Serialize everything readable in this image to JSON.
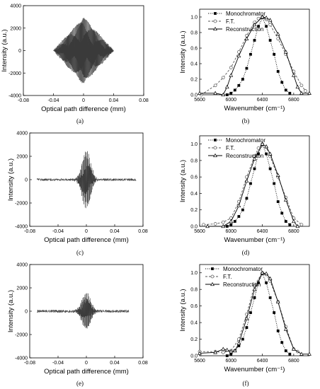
{
  "panel_labels": [
    "(a)",
    "(b)",
    "(c)",
    "(d)",
    "(e)",
    "(f)"
  ],
  "chart_data": [
    {
      "type": "line",
      "panel": "(a)",
      "xlabel": "Optical path difference (mm)",
      "ylabel": "Intensity (a.u.)",
      "xlim": [
        -0.08,
        0.08
      ],
      "ylim": [
        -4000,
        4000
      ],
      "xticks": [
        -0.08,
        -0.04,
        0,
        0.04,
        0.08
      ],
      "xtick_labels": [
        "-0.08",
        "-0.04",
        "0",
        "0.04",
        "0.08"
      ],
      "yticks": [
        -4000,
        -2000,
        0,
        2000,
        4000
      ],
      "ytick_labels": [
        "-4000",
        "-2000",
        "0",
        "2000",
        "4000"
      ],
      "color": "#3a3a3a",
      "signal": {
        "x_start": -0.04,
        "x_end": 0.04,
        "peak_amplitude": 3000,
        "envelope": "triangular",
        "baseline_noise": 100
      }
    },
    {
      "type": "line",
      "panel": "(b)",
      "xlabel": "Wavenumber (cm⁻¹)",
      "ylabel": "Intensity (a.u.)",
      "xlim": [
        5600,
        7000
      ],
      "ylim": [
        0,
        1.1
      ],
      "xticks": [
        5600,
        6000,
        6400,
        6800
      ],
      "xtick_labels": [
        "5600",
        "6000",
        "6400",
        "6800"
      ],
      "yticks": [
        0,
        0.2,
        0.4,
        0.6,
        0.8,
        1.0
      ],
      "ytick_labels": [
        "0.0",
        "0.2",
        "0.4",
        "0.6",
        "0.8",
        "1.0"
      ],
      "legend_position": "top-right",
      "series": [
        {
          "name": "Monochromator",
          "style": "dotted",
          "marker": "square",
          "x": [
            5950,
            6000,
            6050,
            6100,
            6150,
            6200,
            6250,
            6300,
            6350,
            6400,
            6450,
            6500,
            6550,
            6600,
            6650,
            6700,
            6750
          ],
          "y": [
            0.0,
            0.02,
            0.06,
            0.12,
            0.2,
            0.34,
            0.52,
            0.7,
            0.88,
            0.99,
            0.88,
            0.7,
            0.52,
            0.3,
            0.16,
            0.06,
            0.02
          ]
        },
        {
          "name": "F.T.",
          "style": "dashed",
          "marker": "circle",
          "x": [
            5620,
            5800,
            5900,
            6000,
            6100,
            6200,
            6300,
            6350,
            6400,
            6450,
            6500,
            6600,
            6700,
            6800,
            6900,
            6950
          ],
          "y": [
            0.0,
            0.12,
            0.22,
            0.35,
            0.55,
            0.76,
            0.93,
            0.98,
            1.0,
            0.97,
            0.9,
            0.72,
            0.52,
            0.3,
            0.12,
            0.05
          ]
        },
        {
          "name": "Reconstruction",
          "style": "solid",
          "marker": "triangle",
          "x": [
            5600,
            5800,
            5900,
            5950,
            6000,
            6100,
            6200,
            6300,
            6400,
            6450,
            6500,
            6600,
            6700,
            6800,
            6850,
            6900,
            7000
          ],
          "y": [
            0.02,
            0.02,
            0.0,
            0.1,
            0.25,
            0.5,
            0.72,
            0.9,
            1.0,
            0.99,
            0.96,
            0.78,
            0.55,
            0.25,
            0.1,
            0.02,
            0.02
          ]
        }
      ]
    },
    {
      "type": "line",
      "panel": "(c)",
      "xlabel": "Optical path difference (mm)",
      "ylabel": "Intensity (a.u.)",
      "xlim": [
        -0.08,
        0.08
      ],
      "ylim": [
        -4000,
        4000
      ],
      "xticks": [
        -0.08,
        -0.04,
        0,
        0.04,
        0.08
      ],
      "xtick_labels": [
        "-0.08",
        "-0.04",
        "0",
        "0.04",
        "0.08"
      ],
      "yticks": [
        -4000,
        -2000,
        0,
        2000,
        4000
      ],
      "ytick_labels": [
        "-4000",
        "-2000",
        "0",
        "2000",
        "4000"
      ],
      "color": "#3a3a3a",
      "signal": {
        "x_start": -0.07,
        "x_end": 0.07,
        "peak_amplitude": 2500,
        "envelope": "narrow",
        "baseline_noise": 180
      }
    },
    {
      "type": "line",
      "panel": "(d)",
      "xlabel": "Wavenumber (cm⁻¹)",
      "ylabel": "Intensity (a.u.)",
      "xlim": [
        5600,
        7000
      ],
      "ylim": [
        0,
        1.1
      ],
      "xticks": [
        5600,
        6000,
        6400,
        6800
      ],
      "xtick_labels": [
        "5600",
        "6000",
        "6400",
        "6800"
      ],
      "yticks": [
        0,
        0.2,
        0.4,
        0.6,
        0.8,
        1.0
      ],
      "ytick_labels": [
        "0.0",
        "0.2",
        "0.4",
        "0.6",
        "0.8",
        "1.0"
      ],
      "legend_position": "top-right",
      "series": [
        {
          "name": "Monochromator",
          "style": "dotted",
          "marker": "square",
          "x": [
            5950,
            6000,
            6050,
            6100,
            6150,
            6200,
            6250,
            6300,
            6350,
            6400,
            6450,
            6500,
            6550,
            6600,
            6650,
            6700,
            6750
          ],
          "y": [
            0.0,
            0.02,
            0.06,
            0.12,
            0.2,
            0.34,
            0.52,
            0.7,
            0.88,
            0.99,
            0.88,
            0.7,
            0.52,
            0.3,
            0.16,
            0.06,
            0.02
          ]
        },
        {
          "name": "F.T.",
          "style": "dashed",
          "marker": "circle",
          "x": [
            5650,
            5800,
            5900,
            6000,
            6100,
            6200,
            6300,
            6350,
            6400,
            6450,
            6500,
            6600,
            6700,
            6800,
            6900
          ],
          "y": [
            0.02,
            0.03,
            0.05,
            0.1,
            0.3,
            0.6,
            0.85,
            0.95,
            1.0,
            0.96,
            0.85,
            0.6,
            0.35,
            0.1,
            0.02
          ]
        },
        {
          "name": "Reconstruction",
          "style": "solid",
          "marker": "triangle",
          "x": [
            5700,
            5900,
            6000,
            6100,
            6200,
            6300,
            6400,
            6450,
            6500,
            6600,
            6700,
            6800,
            6850
          ],
          "y": [
            0.0,
            0.0,
            0.06,
            0.25,
            0.55,
            0.82,
            1.0,
            0.97,
            0.88,
            0.62,
            0.32,
            0.06,
            0.0
          ]
        }
      ]
    },
    {
      "type": "line",
      "panel": "(e)",
      "xlabel": "Optical path difference (mm)",
      "ylabel": "Intensity (a.u.)",
      "xlim": [
        -0.08,
        0.08
      ],
      "ylim": [
        -4000,
        4000
      ],
      "xticks": [
        -0.08,
        -0.04,
        0,
        0.04,
        0.08
      ],
      "xtick_labels": [
        "-0.08",
        "-0.04",
        "0",
        "0.04",
        "0.08"
      ],
      "yticks": [
        -4000,
        -2000,
        0,
        2000,
        4000
      ],
      "ytick_labels": [
        "-4000",
        "-2000",
        "0",
        "2000",
        "4000"
      ],
      "color": "#3a3a3a",
      "signal": {
        "x_start": -0.07,
        "x_end": 0.06,
        "peak_amplitude": 1600,
        "envelope": "narrow",
        "baseline_noise": 200
      }
    },
    {
      "type": "line",
      "panel": "(f)",
      "xlabel": "Wavenumber (cm⁻¹)",
      "ylabel": "Intensity (a.u.)",
      "xlim": [
        5600,
        7000
      ],
      "ylim": [
        0,
        1.1
      ],
      "xticks": [
        5600,
        6000,
        6400,
        6800
      ],
      "xtick_labels": [
        "5600",
        "6000",
        "6400",
        "6800"
      ],
      "yticks": [
        0,
        0.2,
        0.4,
        0.6,
        0.8,
        1.0
      ],
      "ytick_labels": [
        "0.0",
        "0.2",
        "0.4",
        "0.6",
        "0.8",
        "1.0"
      ],
      "legend_position": "top-left",
      "series": [
        {
          "name": "Monochromator",
          "style": "dotted",
          "marker": "square",
          "x": [
            5950,
            6000,
            6050,
            6100,
            6150,
            6200,
            6250,
            6300,
            6350,
            6400,
            6450,
            6500,
            6550,
            6600,
            6650,
            6700,
            6750
          ],
          "y": [
            0.0,
            0.02,
            0.06,
            0.12,
            0.2,
            0.34,
            0.52,
            0.7,
            0.88,
            0.99,
            0.88,
            0.7,
            0.52,
            0.3,
            0.16,
            0.06,
            0.02
          ]
        },
        {
          "name": "F.T.",
          "style": "dashed",
          "marker": "circle",
          "x": [
            5600,
            5800,
            5900,
            6000,
            6100,
            6200,
            6300,
            6400,
            6450,
            6500,
            6600,
            6700,
            6800,
            6850
          ],
          "y": [
            0.05,
            0.05,
            0.04,
            0.06,
            0.2,
            0.5,
            0.85,
            1.0,
            0.98,
            0.9,
            0.65,
            0.35,
            0.08,
            0.05
          ]
        },
        {
          "name": "Reconstruction",
          "style": "solid",
          "marker": "triangle",
          "x": [
            5600,
            5800,
            5900,
            5950,
            6000,
            6050,
            6100,
            6200,
            6300,
            6400,
            6450,
            6500,
            6600,
            6700,
            6800,
            6900,
            7000
          ],
          "y": [
            0.03,
            0.04,
            0.08,
            0.07,
            0.05,
            0.06,
            0.15,
            0.45,
            0.8,
            1.0,
            0.99,
            0.93,
            0.65,
            0.32,
            0.08,
            0.02,
            0.02
          ]
        }
      ]
    }
  ]
}
